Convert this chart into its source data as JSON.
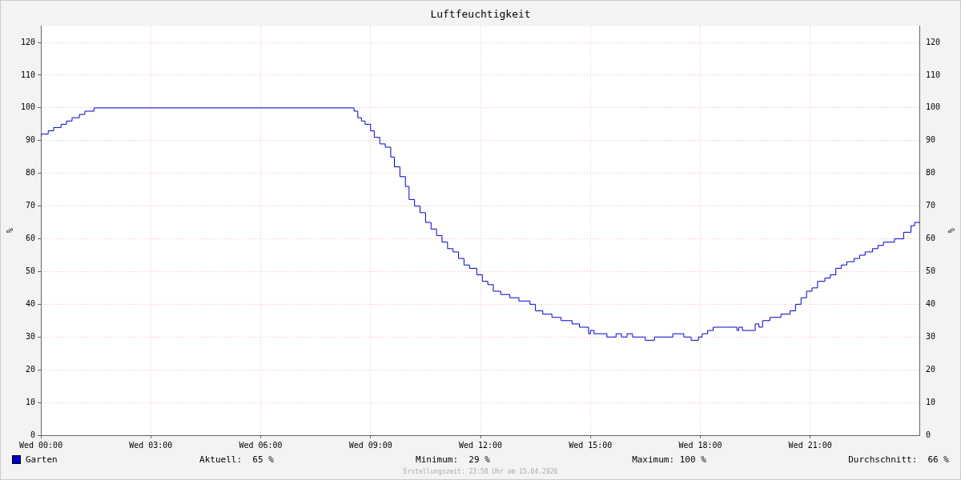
{
  "chart_data": {
    "type": "step",
    "title": "Luftfeuchtigkeit",
    "ylabel": "%",
    "y2label": "%",
    "xlim": [
      "2026-04-15T00:00",
      "2026-04-16T00:00"
    ],
    "xticks": [
      {
        "value": "2026-04-15T00:00",
        "label": "Wed 00:00"
      },
      {
        "value": "2026-04-15T03:00",
        "label": "Wed 03:00"
      },
      {
        "value": "2026-04-15T06:00",
        "label": "Wed 06:00"
      },
      {
        "value": "2026-04-15T09:00",
        "label": "Wed 09:00"
      },
      {
        "value": "2026-04-15T12:00",
        "label": "Wed 12:00"
      },
      {
        "value": "2026-04-15T15:00",
        "label": "Wed 15:00"
      },
      {
        "value": "2026-04-15T18:00",
        "label": "Wed 18:00"
      },
      {
        "value": "2026-04-15T21:00",
        "label": "Wed 21:00"
      }
    ],
    "ylim": [
      0,
      125
    ],
    "yticks": [
      0,
      10,
      20,
      30,
      40,
      50,
      60,
      70,
      80,
      90,
      100,
      110,
      120
    ],
    "y2lim": [
      0,
      125
    ],
    "y2ticks": [
      0,
      10,
      20,
      30,
      40,
      50,
      60,
      70,
      80,
      90,
      100,
      110,
      120
    ],
    "grid": true,
    "legend": "bottom left",
    "marker": "none",
    "line_style": "solid",
    "series": [
      {
        "name": "Garten",
        "color": "#0000cc",
        "x": [
          "2026-04-15T00:00",
          "2026-04-15T00:12",
          "2026-04-15T00:21",
          "2026-04-15T00:33",
          "2026-04-15T00:42",
          "2026-04-15T00:51",
          "2026-04-15T01:03",
          "2026-04-15T01:12",
          "2026-04-15T01:27",
          "2026-04-15T01:45",
          "2026-04-15T08:33",
          "2026-04-15T08:39",
          "2026-04-15T08:45",
          "2026-04-15T08:51",
          "2026-04-15T09:00",
          "2026-04-15T09:06",
          "2026-04-15T09:15",
          "2026-04-15T09:24",
          "2026-04-15T09:33",
          "2026-04-15T09:39",
          "2026-04-15T09:48",
          "2026-04-15T09:57",
          "2026-04-15T10:03",
          "2026-04-15T10:12",
          "2026-04-15T10:21",
          "2026-04-15T10:30",
          "2026-04-15T10:39",
          "2026-04-15T10:48",
          "2026-04-15T10:57",
          "2026-04-15T11:06",
          "2026-04-15T11:15",
          "2026-04-15T11:24",
          "2026-04-15T11:33",
          "2026-04-15T11:42",
          "2026-04-15T11:54",
          "2026-04-15T12:03",
          "2026-04-15T12:12",
          "2026-04-15T12:21",
          "2026-04-15T12:33",
          "2026-04-15T12:48",
          "2026-04-15T13:03",
          "2026-04-15T13:21",
          "2026-04-15T13:30",
          "2026-04-15T13:42",
          "2026-04-15T13:57",
          "2026-04-15T14:12",
          "2026-04-15T14:30",
          "2026-04-15T14:42",
          "2026-04-15T14:57",
          "2026-04-15T15:00",
          "2026-04-15T15:06",
          "2026-04-15T15:27",
          "2026-04-15T15:42",
          "2026-04-15T15:51",
          "2026-04-15T16:00",
          "2026-04-15T16:09",
          "2026-04-15T16:30",
          "2026-04-15T16:45",
          "2026-04-15T17:15",
          "2026-04-15T17:33",
          "2026-04-15T17:45",
          "2026-04-15T17:57",
          "2026-04-15T18:03",
          "2026-04-15T18:12",
          "2026-04-15T18:21",
          "2026-04-15T18:33",
          "2026-04-15T19:00",
          "2026-04-15T19:03",
          "2026-04-15T19:09",
          "2026-04-15T19:30",
          "2026-04-15T19:36",
          "2026-04-15T19:42",
          "2026-04-15T19:54",
          "2026-04-15T20:12",
          "2026-04-15T20:27",
          "2026-04-15T20:36",
          "2026-04-15T20:45",
          "2026-04-15T20:54",
          "2026-04-15T21:03",
          "2026-04-15T21:12",
          "2026-04-15T21:24",
          "2026-04-15T21:33",
          "2026-04-15T21:42",
          "2026-04-15T21:51",
          "2026-04-15T22:00",
          "2026-04-15T22:12",
          "2026-04-15T22:21",
          "2026-04-15T22:30",
          "2026-04-15T22:42",
          "2026-04-15T22:51",
          "2026-04-15T23:00",
          "2026-04-15T23:18",
          "2026-04-15T23:33",
          "2026-04-15T23:45",
          "2026-04-15T23:51",
          "2026-04-16T00:00"
        ],
        "values": [
          91,
          92,
          93,
          94,
          95,
          96,
          97,
          98,
          99,
          100,
          100,
          99,
          97,
          96,
          95,
          93,
          91,
          89,
          88,
          85,
          82,
          79,
          76,
          72,
          70,
          68,
          65,
          63,
          61,
          59,
          57,
          56,
          54,
          52,
          51,
          49,
          47,
          46,
          44,
          43,
          42,
          41,
          40,
          38,
          37,
          36,
          35,
          34,
          33,
          31,
          32,
          31,
          30,
          31,
          30,
          31,
          30,
          29,
          30,
          31,
          30,
          29,
          30,
          31,
          32,
          33,
          33,
          32,
          33,
          32,
          34,
          33,
          35,
          36,
          37,
          38,
          40,
          42,
          44,
          45,
          47,
          48,
          49,
          51,
          52,
          53,
          54,
          55,
          56,
          57,
          58,
          59,
          60,
          62,
          64,
          65
        ]
      }
    ],
    "annotations": [
      "Aktuell:  65 %",
      "Minimum:  29 %",
      "Maximum: 100 %",
      "Durchschnitt:  66 %",
      "Erstellungszeit: 23:58 Uhr am 15.04.2026"
    ]
  }
}
